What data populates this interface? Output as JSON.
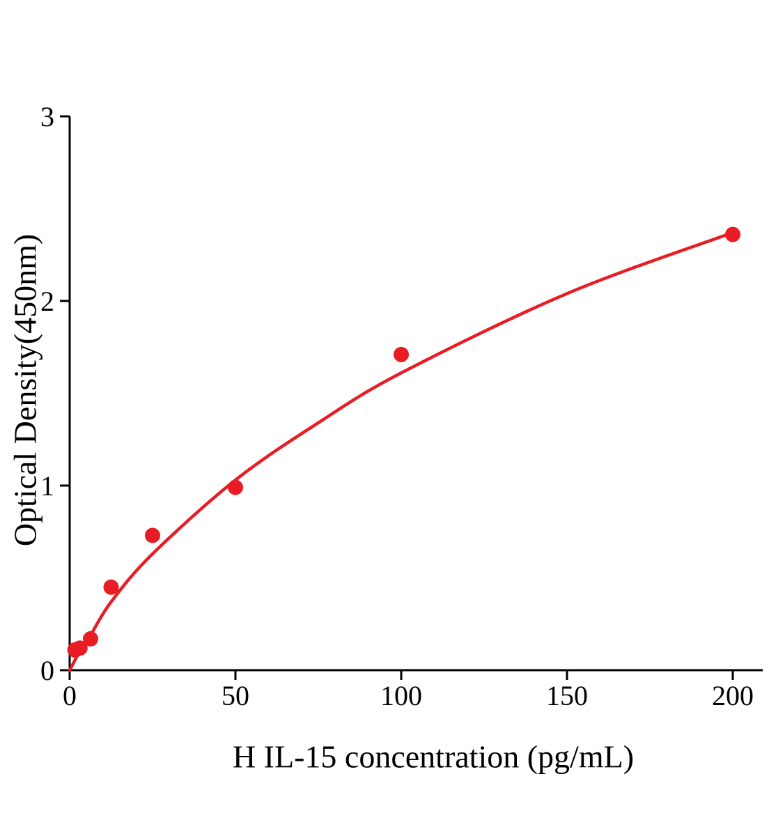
{
  "chart_data": {
    "type": "scatter",
    "title": "",
    "xlabel": "H IL-15 concentration (pg/mL)",
    "ylabel": "Optical Density(450nm)",
    "x_ticks": [
      0,
      50,
      100,
      150,
      200
    ],
    "y_ticks": [
      0,
      1,
      2,
      3
    ],
    "xlim": [
      0,
      209
    ],
    "ylim": [
      0,
      3
    ],
    "grid": false,
    "legend": false,
    "accent_color": "#e81c24",
    "axis_color": "#000000",
    "series": [
      {
        "name": "standard-points",
        "type": "scatter",
        "color": "#e81c24",
        "points": [
          [
            1.6,
            0.11
          ],
          [
            3.1,
            0.12
          ],
          [
            6.3,
            0.17
          ],
          [
            12.5,
            0.45
          ],
          [
            25,
            0.73
          ],
          [
            50,
            0.99
          ],
          [
            100,
            1.71
          ],
          [
            200,
            2.36
          ]
        ]
      },
      {
        "name": "fit-curve",
        "type": "line",
        "color": "#e81c24",
        "points": [
          [
            0,
            0
          ],
          [
            3,
            0.1
          ],
          [
            6,
            0.18
          ],
          [
            12.5,
            0.37
          ],
          [
            25,
            0.63
          ],
          [
            50,
            1.03
          ],
          [
            75,
            1.34
          ],
          [
            100,
            1.61
          ],
          [
            150,
            2.04
          ],
          [
            200,
            2.37
          ]
        ]
      }
    ]
  }
}
